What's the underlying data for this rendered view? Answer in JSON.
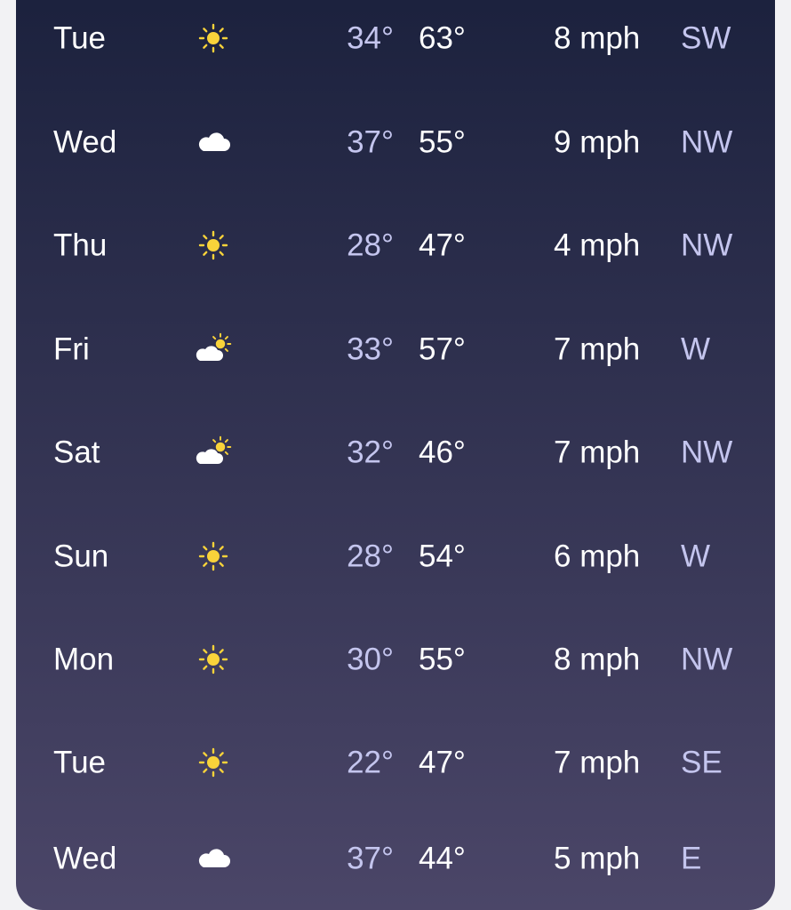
{
  "forecast": {
    "rows": [
      {
        "day": "Tue",
        "low": "34°",
        "high": "63°",
        "wind": "8 mph",
        "direction": "SW"
      },
      {
        "day": "Wed",
        "low": "37°",
        "high": "55°",
        "wind": "9 mph",
        "direction": "NW"
      },
      {
        "day": "Thu",
        "low": "28°",
        "high": "47°",
        "wind": "4 mph",
        "direction": "NW"
      },
      {
        "day": "Fri",
        "low": "33°",
        "high": "57°",
        "wind": "7 mph",
        "direction": "W"
      },
      {
        "day": "Sat",
        "low": "32°",
        "high": "46°",
        "wind": "7 mph",
        "direction": "NW"
      },
      {
        "day": "Sun",
        "low": "28°",
        "high": "54°",
        "wind": "6 mph",
        "direction": "W"
      },
      {
        "day": "Mon",
        "low": "30°",
        "high": "55°",
        "wind": "8 mph",
        "direction": "NW"
      },
      {
        "day": "Tue",
        "low": "22°",
        "high": "47°",
        "wind": "7 mph",
        "direction": "SE"
      },
      {
        "day": "Wed",
        "low": "37°",
        "high": "44°",
        "wind": "5 mph",
        "direction": "E"
      }
    ]
  }
}
